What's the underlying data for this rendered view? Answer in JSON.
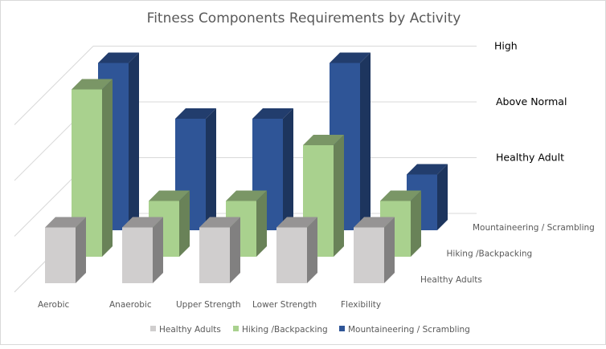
{
  "chart_data": {
    "type": "bar",
    "subtype": "3d-column",
    "title": "Fitness Components Requirements by Activity",
    "categories": [
      "Aerobic",
      "Anaerobic",
      "Upper Strength",
      "Lower Strength",
      "Flexibility"
    ],
    "series": [
      {
        "name": "Healthy Adults",
        "axis_label": "Healthy Adults",
        "color": "#d0cece",
        "values": [
          1,
          1,
          1,
          1,
          1
        ]
      },
      {
        "name": "Hiking /Backpacking",
        "axis_label": "Hiking /Backpacking",
        "color": "#a9d18e",
        "values": [
          3,
          1,
          1,
          2,
          1
        ]
      },
      {
        "name": "Mountaineering / Scrambling",
        "axis_label": "Mountaineering / Scrambling",
        "color": "#2f5597",
        "values": [
          3,
          2,
          2,
          3,
          1
        ]
      }
    ],
    "ylim": [
      0,
      3
    ],
    "ytick_labels": [
      {
        "value": 1,
        "label": "Healthy Adult"
      },
      {
        "value": 2,
        "label": "Above Normal"
      },
      {
        "value": 3,
        "label": "High"
      }
    ],
    "grid": true,
    "legend": "bottom"
  }
}
